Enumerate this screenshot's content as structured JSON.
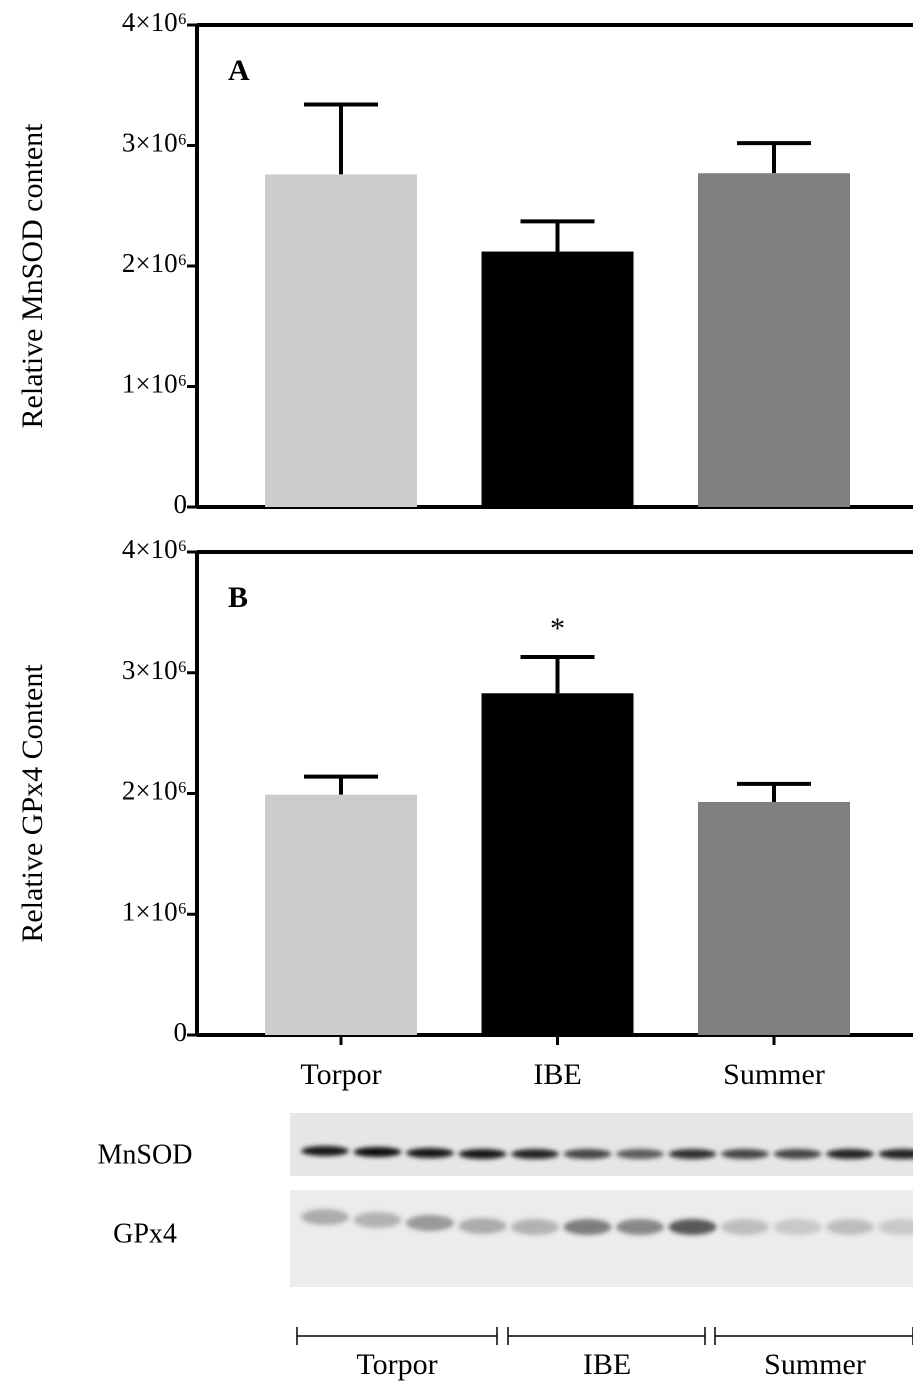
{
  "chart_data": [
    {
      "type": "bar",
      "annotation_letter": "A",
      "ylabel": "Relative MnSOD content",
      "categories": [
        null,
        null,
        null
      ],
      "values": [
        2760000,
        2120000,
        2770000
      ],
      "errors": [
        580000,
        250000,
        250000
      ],
      "colors": [
        "#cccccc",
        "#000000",
        "#808080"
      ],
      "ylim": [
        0,
        4000000
      ],
      "yticks": [
        0,
        {
          "value": 1000000,
          "label": "1×10⁶"
        },
        {
          "value": 2000000,
          "label": "2×10⁶"
        },
        {
          "value": 3000000,
          "label": "3×10⁶"
        },
        {
          "value": 4000000,
          "label": "4×10⁶"
        }
      ]
    },
    {
      "type": "bar",
      "annotation_letter": "B",
      "ylabel": "Relative GPx4 Content",
      "categories": [
        "Torpor",
        "IBE",
        "Summer"
      ],
      "values": [
        1990000,
        2830000,
        1930000
      ],
      "errors": [
        150000,
        300000,
        150000
      ],
      "colors": [
        "#cccccc",
        "#000000",
        "#808080"
      ],
      "annotations": [
        {
          "text": "*",
          "category": "IBE"
        }
      ],
      "ylim": [
        0,
        4000000
      ],
      "yticks": [
        0,
        {
          "value": 1000000,
          "label": "1×10⁶"
        },
        {
          "value": 2000000,
          "label": "2×10⁶"
        },
        {
          "value": 3000000,
          "label": "3×10⁶"
        },
        {
          "value": 4000000,
          "label": "4×10⁶"
        }
      ]
    }
  ],
  "blot": {
    "rows": [
      "MnSOD",
      "GPx4"
    ],
    "groups": [
      "Torpor",
      "IBE",
      "Summer"
    ]
  }
}
